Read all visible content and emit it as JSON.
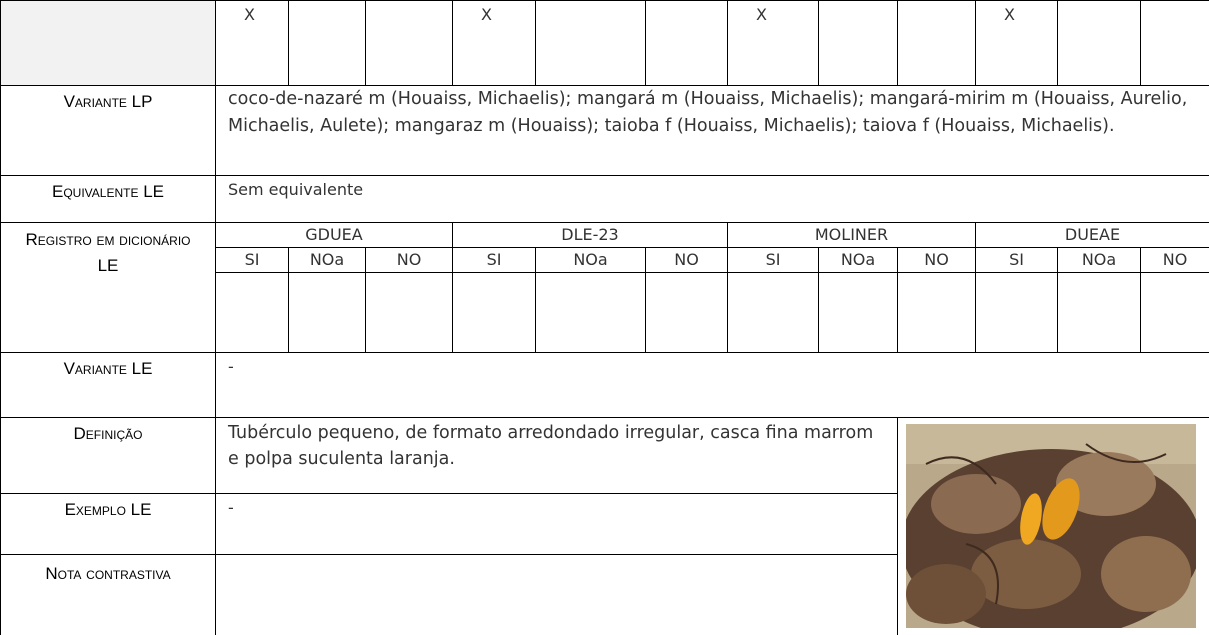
{
  "top_marks": [
    "X",
    "X",
    "X",
    "X"
  ],
  "variante_lp": {
    "label": "Variante LP",
    "text": "coco-de-nazaré m (Houaiss, Michaelis); mangará m (Houaiss, Michaelis); mangará-mirim m (Houaiss, Aurelio, Michaelis, Aulete); mangaraz m (Houaiss); taioba f (Houaiss, Michaelis); taiova f (Houaiss, Michaelis)."
  },
  "equivalente_le": {
    "label": "Equivalente LE",
    "text": "Sem equivalente"
  },
  "registro": {
    "label": "Registro em dicionário LE",
    "dictionaries": [
      {
        "name": "GDUEA",
        "columns": [
          "SI",
          "NOa",
          "NO"
        ]
      },
      {
        "name": "DLE-23",
        "columns": [
          "SI",
          "NOa",
          "NO"
        ]
      },
      {
        "name": "MOLINER",
        "columns": [
          "SI",
          "NOa",
          "NO"
        ]
      },
      {
        "name": "DUEAE",
        "columns": [
          "SI",
          "NOa",
          "NO"
        ]
      }
    ]
  },
  "variante_le": {
    "label": "Variante LE",
    "text": "-"
  },
  "definicao": {
    "label": "Definição",
    "text": "Tubérculo pequeno, de formato arredondado irregular, casca fina marrom e polpa suculenta laranja."
  },
  "exemplo_le": {
    "label": "Exemplo LE",
    "text": "-"
  },
  "nota_contrastiva": {
    "label": "Nota contrastiva"
  }
}
